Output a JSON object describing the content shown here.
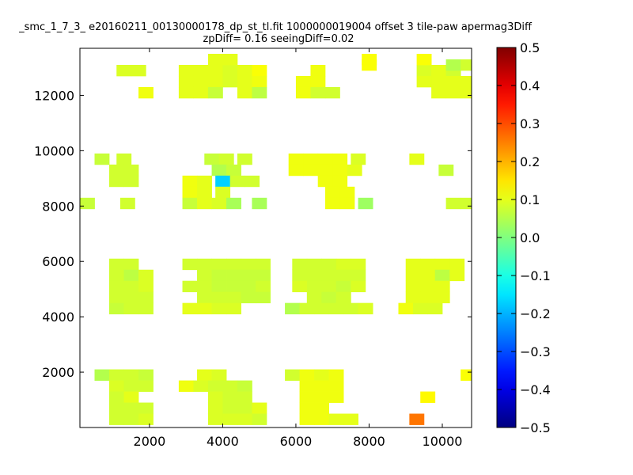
{
  "chart_data": {
    "type": "heatmap",
    "title": "_smc_1_7_3_ e20160211_00130000178_dp_st_tl.fit 1000000019004 offset 3 tile-paw apermag3Diff",
    "subtitle": "zpDiff= 0.16 seeingDiff=0.02",
    "xlabel": "",
    "ylabel": "",
    "xlim": [
      100,
      10800
    ],
    "ylim": [
      0,
      13700
    ],
    "xticks": [
      2000,
      4000,
      6000,
      8000,
      10000
    ],
    "yticks": [
      2000,
      4000,
      6000,
      8000,
      10000,
      12000
    ],
    "cell_size": 400,
    "colormap": "jet",
    "color_range": [
      -0.5,
      0.5
    ],
    "colorbar_ticks": [
      0.5,
      0.4,
      0.3,
      0.2,
      0.1,
      0.0,
      -0.1,
      -0.2,
      -0.3,
      -0.4,
      -0.5
    ],
    "colorbar_tick_labels": [
      "0.5",
      "0.4",
      "0.3",
      "0.2",
      "0.1",
      "0.0",
      "−0.1",
      "−0.2",
      "−0.3",
      "−0.4",
      "−0.5"
    ],
    "grid": false,
    "cells": [
      [
        1300,
        12900,
        0.09
      ],
      [
        1700,
        12900,
        0.09
      ],
      [
        3000,
        12900,
        0.1
      ],
      [
        3400,
        12900,
        0.1
      ],
      [
        3800,
        12900,
        0.1
      ],
      [
        4200,
        12900,
        0.09
      ],
      [
        4600,
        12900,
        0.1
      ],
      [
        5000,
        12900,
        0.12
      ],
      [
        6600,
        12900,
        0.11
      ],
      [
        9500,
        12900,
        0.09
      ],
      [
        9900,
        12900,
        0.1
      ],
      [
        10300,
        12900,
        0.08
      ],
      [
        3000,
        12500,
        0.1
      ],
      [
        3400,
        12500,
        0.1
      ],
      [
        3800,
        12500,
        0.1
      ],
      [
        4200,
        12500,
        0.09
      ],
      [
        4600,
        12500,
        0.1
      ],
      [
        5000,
        12500,
        0.11
      ],
      [
        6200,
        12500,
        0.11
      ],
      [
        6600,
        12500,
        0.11
      ],
      [
        9500,
        12500,
        0.1
      ],
      [
        9900,
        12500,
        0.1
      ],
      [
        10300,
        12500,
        0.1
      ],
      [
        10700,
        12500,
        0.1
      ],
      [
        1900,
        12100,
        0.11
      ],
      [
        3000,
        12100,
        0.1
      ],
      [
        3400,
        12100,
        0.1
      ],
      [
        3800,
        12100,
        0.07
      ],
      [
        4600,
        12100,
        0.1
      ],
      [
        5000,
        12100,
        0.06
      ],
      [
        6200,
        12100,
        0.11
      ],
      [
        6600,
        12100,
        0.08
      ],
      [
        7000,
        12100,
        0.08
      ],
      [
        9900,
        12100,
        0.1
      ],
      [
        10300,
        12100,
        0.1
      ],
      [
        10700,
        12100,
        0.1
      ],
      [
        3800,
        13300,
        0.1
      ],
      [
        4200,
        13300,
        0.1
      ],
      [
        8000,
        13300,
        0.12
      ],
      [
        9500,
        13300,
        0.12
      ],
      [
        8000,
        13100,
        0.12
      ],
      [
        10300,
        13100,
        0.05
      ],
      [
        10700,
        13100,
        0.08
      ],
      [
        700,
        9700,
        0.07
      ],
      [
        1300,
        9700,
        0.08
      ],
      [
        3700,
        9700,
        0.07
      ],
      [
        4100,
        9700,
        0.08
      ],
      [
        4600,
        9700,
        0.08
      ],
      [
        6000,
        9700,
        0.11
      ],
      [
        6400,
        9700,
        0.11
      ],
      [
        6800,
        9700,
        0.11
      ],
      [
        7200,
        9700,
        0.11
      ],
      [
        7700,
        9700,
        0.09
      ],
      [
        9300,
        9700,
        0.1
      ],
      [
        1100,
        9300,
        0.08
      ],
      [
        1500,
        9300,
        0.08
      ],
      [
        3900,
        9300,
        0.05
      ],
      [
        4300,
        9300,
        0.07
      ],
      [
        6000,
        9300,
        0.11
      ],
      [
        6400,
        9300,
        0.11
      ],
      [
        6800,
        9300,
        0.11
      ],
      [
        7200,
        9300,
        0.11
      ],
      [
        7600,
        9300,
        0.1
      ],
      [
        10100,
        9300,
        0.07
      ],
      [
        1100,
        8900,
        0.08
      ],
      [
        1500,
        8900,
        0.08
      ],
      [
        3100,
        8900,
        0.11
      ],
      [
        3500,
        8900,
        0.1
      ],
      [
        4000,
        8900,
        -0.17
      ],
      [
        4400,
        8900,
        0.08
      ],
      [
        4800,
        8900,
        0.08
      ],
      [
        6800,
        8900,
        0.11
      ],
      [
        7200,
        8900,
        0.11
      ],
      [
        3100,
        8500,
        0.11
      ],
      [
        3500,
        8500,
        0.1
      ],
      [
        4000,
        8500,
        0.09
      ],
      [
        7000,
        8500,
        0.11
      ],
      [
        7400,
        8500,
        0.11
      ],
      [
        300,
        8100,
        0.07
      ],
      [
        1400,
        8100,
        0.08
      ],
      [
        3100,
        8100,
        0.07
      ],
      [
        3500,
        8100,
        0.1
      ],
      [
        3900,
        8100,
        0.09
      ],
      [
        4300,
        8100,
        0.04
      ],
      [
        5000,
        8100,
        0.04
      ],
      [
        7000,
        8100,
        0.11
      ],
      [
        7400,
        8100,
        0.11
      ],
      [
        7900,
        8100,
        0.03
      ],
      [
        10300,
        8100,
        0.08
      ],
      [
        10700,
        8100,
        0.08
      ],
      [
        1100,
        5900,
        0.08
      ],
      [
        1500,
        5900,
        0.08
      ],
      [
        3100,
        5900,
        0.08
      ],
      [
        3500,
        5900,
        0.08
      ],
      [
        3900,
        5900,
        0.08
      ],
      [
        4300,
        5900,
        0.08
      ],
      [
        4700,
        5900,
        0.08
      ],
      [
        5100,
        5900,
        0.08
      ],
      [
        6100,
        5900,
        0.08
      ],
      [
        6500,
        5900,
        0.08
      ],
      [
        6900,
        5900,
        0.08
      ],
      [
        7300,
        5900,
        0.09
      ],
      [
        7700,
        5900,
        0.09
      ],
      [
        9200,
        5900,
        0.1
      ],
      [
        9600,
        5900,
        0.1
      ],
      [
        10000,
        5900,
        0.1
      ],
      [
        10400,
        5900,
        0.1
      ],
      [
        1100,
        5500,
        0.08
      ],
      [
        1500,
        5500,
        0.06
      ],
      [
        1900,
        5500,
        0.09
      ],
      [
        3500,
        5500,
        0.08
      ],
      [
        3900,
        5500,
        0.07
      ],
      [
        4300,
        5500,
        0.07
      ],
      [
        4700,
        5500,
        0.07
      ],
      [
        5100,
        5500,
        0.07
      ],
      [
        6100,
        5500,
        0.08
      ],
      [
        6500,
        5500,
        0.08
      ],
      [
        6900,
        5500,
        0.08
      ],
      [
        7300,
        5500,
        0.08
      ],
      [
        7700,
        5500,
        0.08
      ],
      [
        9200,
        5500,
        0.1
      ],
      [
        9600,
        5500,
        0.1
      ],
      [
        10000,
        5500,
        0.06
      ],
      [
        10400,
        5500,
        0.1
      ],
      [
        1100,
        5100,
        0.08
      ],
      [
        1500,
        5100,
        0.08
      ],
      [
        1900,
        5100,
        0.09
      ],
      [
        3100,
        5100,
        0.08
      ],
      [
        3500,
        5100,
        0.08
      ],
      [
        3900,
        5100,
        0.07
      ],
      [
        4300,
        5100,
        0.07
      ],
      [
        4700,
        5100,
        0.07
      ],
      [
        5100,
        5100,
        0.08
      ],
      [
        6100,
        5100,
        0.09
      ],
      [
        6500,
        5100,
        0.08
      ],
      [
        6900,
        5100,
        0.08
      ],
      [
        7300,
        5100,
        0.07
      ],
      [
        7700,
        5100,
        0.09
      ],
      [
        9200,
        5100,
        0.1
      ],
      [
        9600,
        5100,
        0.1
      ],
      [
        10000,
        5100,
        0.1
      ],
      [
        1100,
        4700,
        0.08
      ],
      [
        1500,
        4700,
        0.08
      ],
      [
        1900,
        4700,
        0.08
      ],
      [
        3500,
        4700,
        0.08
      ],
      [
        3900,
        4700,
        0.08
      ],
      [
        4300,
        4700,
        0.08
      ],
      [
        4700,
        4700,
        0.07
      ],
      [
        5100,
        4700,
        0.07
      ],
      [
        6500,
        4700,
        0.08
      ],
      [
        6900,
        4700,
        0.07
      ],
      [
        7300,
        4700,
        0.08
      ],
      [
        9200,
        4700,
        0.1
      ],
      [
        9600,
        4700,
        0.1
      ],
      [
        10000,
        4700,
        0.1
      ],
      [
        1100,
        4300,
        0.07
      ],
      [
        1500,
        4300,
        0.08
      ],
      [
        1900,
        4300,
        0.08
      ],
      [
        3100,
        4300,
        0.1
      ],
      [
        3500,
        4300,
        0.1
      ],
      [
        3900,
        4300,
        0.09
      ],
      [
        4300,
        4300,
        0.09
      ],
      [
        5900,
        4300,
        0.05
      ],
      [
        6300,
        4300,
        0.08
      ],
      [
        6700,
        4300,
        0.08
      ],
      [
        7100,
        4300,
        0.08
      ],
      [
        7500,
        4300,
        0.08
      ],
      [
        7900,
        4300,
        0.09
      ],
      [
        9000,
        4300,
        0.11
      ],
      [
        9400,
        4300,
        0.09
      ],
      [
        9800,
        4300,
        0.09
      ],
      [
        700,
        1900,
        0.05
      ],
      [
        1100,
        1900,
        0.08
      ],
      [
        1500,
        1900,
        0.08
      ],
      [
        1900,
        1900,
        0.07
      ],
      [
        3500,
        1900,
        0.1
      ],
      [
        3900,
        1900,
        0.09
      ],
      [
        5900,
        1900,
        0.08
      ],
      [
        6300,
        1900,
        0.11
      ],
      [
        6700,
        1900,
        0.1
      ],
      [
        7100,
        1900,
        0.11
      ],
      [
        10700,
        1900,
        0.12
      ],
      [
        1100,
        1500,
        0.09
      ],
      [
        1500,
        1500,
        0.08
      ],
      [
        1900,
        1500,
        0.08
      ],
      [
        3000,
        1500,
        0.11
      ],
      [
        3400,
        1500,
        0.09
      ],
      [
        3800,
        1500,
        0.08
      ],
      [
        4200,
        1500,
        0.08
      ],
      [
        4600,
        1500,
        0.07
      ],
      [
        6300,
        1500,
        0.11
      ],
      [
        6700,
        1500,
        0.11
      ],
      [
        7100,
        1500,
        0.11
      ],
      [
        1100,
        1100,
        0.08
      ],
      [
        1500,
        1100,
        0.1
      ],
      [
        3800,
        1100,
        0.09
      ],
      [
        4200,
        1100,
        0.08
      ],
      [
        4600,
        1100,
        0.08
      ],
      [
        6300,
        1100,
        0.11
      ],
      [
        6700,
        1100,
        0.11
      ],
      [
        7100,
        1100,
        0.11
      ],
      [
        9600,
        1100,
        0.13
      ],
      [
        1100,
        700,
        0.08
      ],
      [
        1500,
        700,
        0.08
      ],
      [
        1900,
        700,
        0.08
      ],
      [
        3800,
        700,
        0.09
      ],
      [
        4200,
        700,
        0.08
      ],
      [
        4600,
        700,
        0.08
      ],
      [
        5000,
        700,
        0.1
      ],
      [
        6300,
        700,
        0.11
      ],
      [
        6700,
        700,
        0.11
      ],
      [
        1100,
        300,
        0.08
      ],
      [
        1500,
        300,
        0.08
      ],
      [
        1900,
        300,
        0.09
      ],
      [
        3800,
        300,
        0.09
      ],
      [
        4200,
        300,
        0.09
      ],
      [
        4600,
        300,
        0.09
      ],
      [
        5000,
        300,
        0.08
      ],
      [
        6300,
        300,
        0.11
      ],
      [
        6700,
        300,
        0.11
      ],
      [
        7100,
        300,
        0.1
      ],
      [
        7500,
        300,
        0.1
      ],
      [
        9300,
        300,
        0.26
      ]
    ]
  }
}
